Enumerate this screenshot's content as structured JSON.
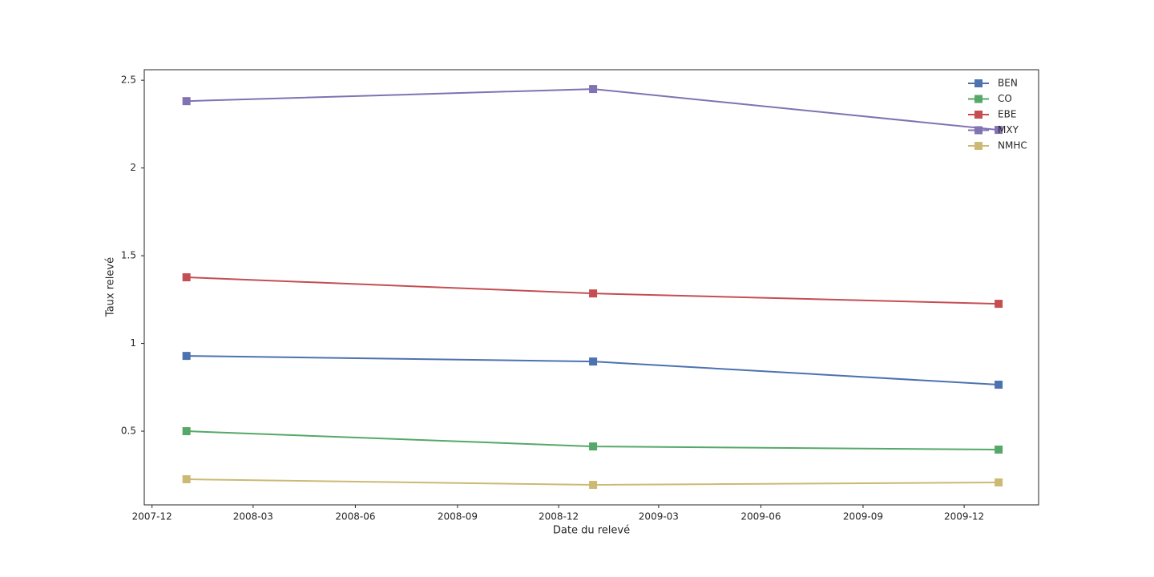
{
  "chart_data": {
    "type": "line",
    "x": [
      "2008-01",
      "2009-01",
      "2010-01"
    ],
    "series": [
      {
        "name": "BEN",
        "color": "#4c72b0",
        "values": [
          0.929,
          0.897,
          0.765
        ]
      },
      {
        "name": "CO",
        "color": "#55a868",
        "values": [
          0.5,
          0.413,
          0.395
        ]
      },
      {
        "name": "EBE",
        "color": "#c44e52",
        "values": [
          1.377,
          1.285,
          1.226
        ]
      },
      {
        "name": "MXY",
        "color": "#8172b2",
        "values": [
          2.381,
          2.45,
          2.217
        ]
      },
      {
        "name": "NMHC",
        "color": "#ccb974",
        "values": [
          0.226,
          0.194,
          0.208
        ]
      }
    ],
    "x_label": "Date du relevé",
    "y_label": "Taux relevé",
    "xlim": [
      "2007-11-24",
      "2010-02-06"
    ],
    "xticks": [
      "2007-12",
      "2008-03",
      "2008-06",
      "2008-09",
      "2008-12",
      "2009-03",
      "2009-06",
      "2009-09",
      "2009-12"
    ],
    "ylim": [
      0.08,
      2.56
    ],
    "yticks": [
      0.5,
      1.0,
      1.5,
      2.0,
      2.5
    ],
    "legend": "upper right",
    "grid": false
  }
}
